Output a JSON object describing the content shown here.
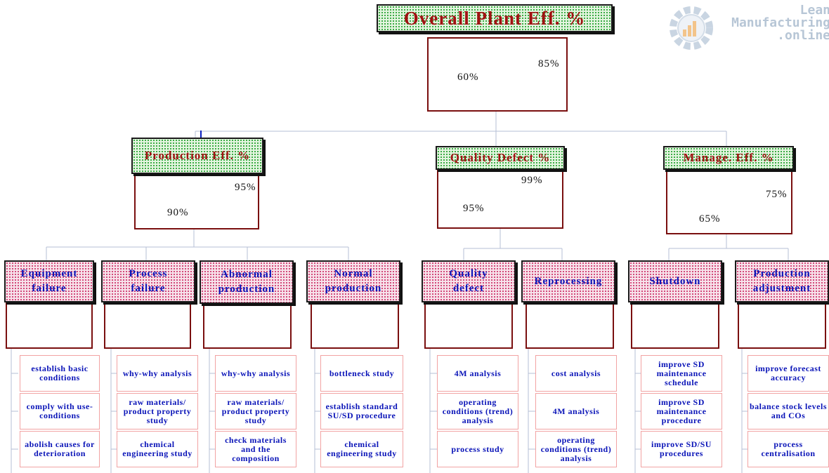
{
  "logo": {
    "line1": "Lean",
    "line2": "Manufacturing",
    "line3": ".online",
    "icon": "gear-chart-icon"
  },
  "top": {
    "title": "Overall Plant Eff. %",
    "from": "60%",
    "to": "85%"
  },
  "mid": [
    {
      "title": "Production Eff. %",
      "from": "90%",
      "to": "95%"
    },
    {
      "title": "Quality Defect %",
      "from": "95%",
      "to": "99%"
    },
    {
      "title": "Manage. Eff. %",
      "from": "65%",
      "to": "75%"
    }
  ],
  "leaves": [
    {
      "title_1": "Equipment",
      "title_2": "failure",
      "actions": [
        "establish basic conditions",
        "comply with use-conditions",
        "abolish causes for deterioration"
      ]
    },
    {
      "title_1": "Process",
      "title_2": "failure",
      "actions": [
        "why-why analysis",
        "raw materials/ product property study",
        "chemical engineering study"
      ]
    },
    {
      "title_1": "Abnormal",
      "title_2": "production",
      "actions": [
        "why-why analysis",
        "raw materials/ product property study",
        "check materials and the composition"
      ]
    },
    {
      "title_1": "Normal",
      "title_2": "production",
      "actions": [
        "bottleneck study",
        "establish standard SU/SD procedure",
        "chemical engineering study"
      ]
    },
    {
      "title_1": "Quality",
      "title_2": "defect",
      "actions": [
        "4M analysis",
        "operating conditions (trend) analysis",
        "process study"
      ]
    },
    {
      "title_1": "Reprocessing",
      "title_2": "",
      "actions": [
        "cost analysis",
        "4M analysis",
        "operating conditions (trend) analysis"
      ]
    },
    {
      "title_1": "Shutdown",
      "title_2": "",
      "actions": [
        "improve SD maintenance schedule",
        "improve SD maintenance procedure",
        "improve SD/SU procedures"
      ]
    },
    {
      "title_1": "Production",
      "title_2": "adjustment",
      "actions": [
        "improve forecast accuracy",
        "balance stock levels and COs",
        "process centralisation"
      ]
    }
  ],
  "colors": {
    "header_text": "#a01212",
    "sub_text": "#0a14b8",
    "arrow": "#0a1fbf",
    "box_border": "#7a0f0f",
    "connector": "#b6bfd6"
  }
}
